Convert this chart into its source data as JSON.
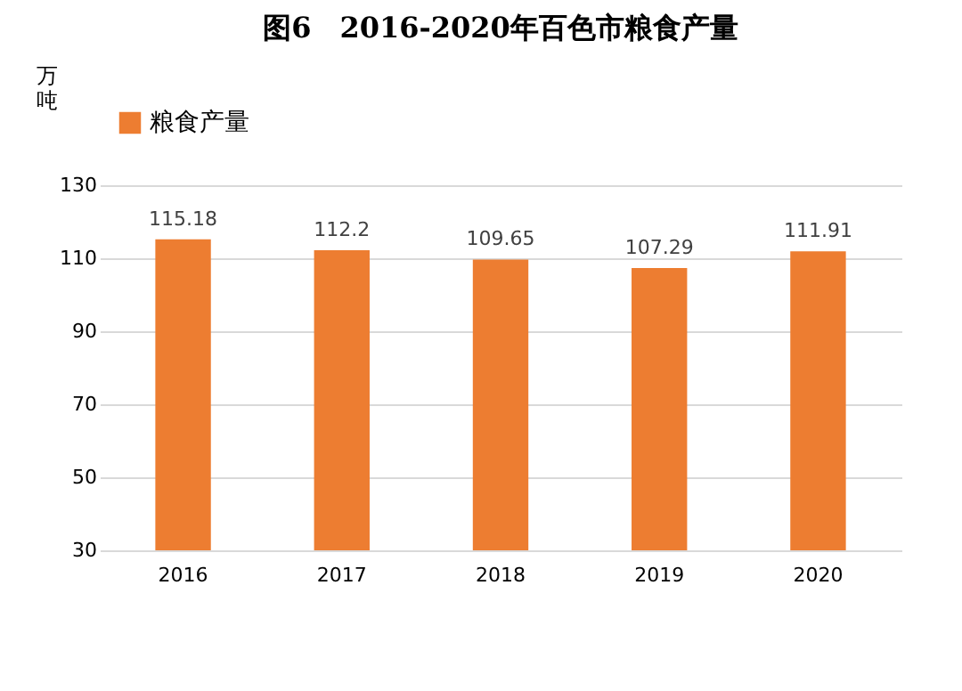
{
  "chart_data": {
    "type": "bar",
    "title": "图6　2016-2020年百色市粮食产量",
    "ylabel": "万吨",
    "categories": [
      "2016",
      "2017",
      "2018",
      "2019",
      "2020"
    ],
    "series": [
      {
        "name": "粮食产量",
        "color": "#ed7d31",
        "values": [
          115.18,
          112.2,
          109.65,
          107.29,
          111.91
        ]
      }
    ],
    "ylim": [
      30,
      130
    ],
    "yticks": [
      30,
      50,
      70,
      90,
      110,
      130
    ],
    "grid": "y",
    "legend": "top",
    "data_labels": true
  }
}
